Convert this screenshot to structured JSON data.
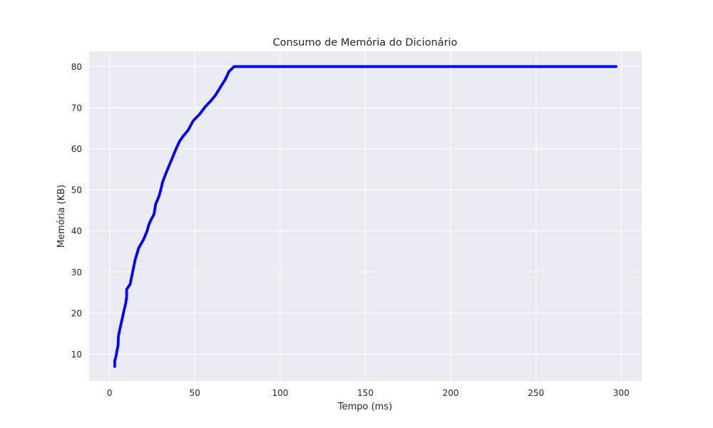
{
  "chart_data": {
    "type": "line",
    "title": "Consumo de Memória do Dicionário",
    "xlabel": "Tempo (ms)",
    "ylabel": "Memória (KB)",
    "xlim": [
      -12,
      312
    ],
    "ylim": [
      3.5,
      83.7
    ],
    "x_ticks": [
      0,
      50,
      100,
      150,
      200,
      250,
      300
    ],
    "y_ticks": [
      10,
      20,
      30,
      40,
      50,
      60,
      70,
      80
    ],
    "grid": true,
    "background": "#eaeaf2",
    "grid_color": "#ffffff",
    "series": [
      {
        "color": "#0000ff",
        "x": [
          3,
          3,
          3.5,
          5,
          5.2,
          6.5,
          8,
          9.5,
          10,
          10,
          12,
          13.5,
          15,
          17,
          20,
          22,
          23,
          24,
          26,
          27,
          29,
          30,
          31,
          33,
          35,
          37,
          39,
          41,
          43,
          46,
          49,
          53,
          56,
          59,
          62,
          65,
          68,
          70,
          73,
          80,
          100,
          150,
          200,
          250,
          297
        ],
        "y": [
          7,
          8.5,
          9,
          12.3,
          14.5,
          17,
          19.8,
          22.5,
          24,
          25.8,
          27,
          30,
          33,
          35.8,
          38,
          40,
          41.5,
          42.5,
          44,
          46.5,
          48.5,
          50,
          51.8,
          54,
          56,
          58,
          60,
          61.8,
          63,
          64.5,
          66.8,
          68.5,
          70.2,
          71.5,
          73,
          75,
          77,
          78.8,
          80,
          80,
          80,
          80,
          80,
          80,
          80
        ]
      }
    ]
  }
}
